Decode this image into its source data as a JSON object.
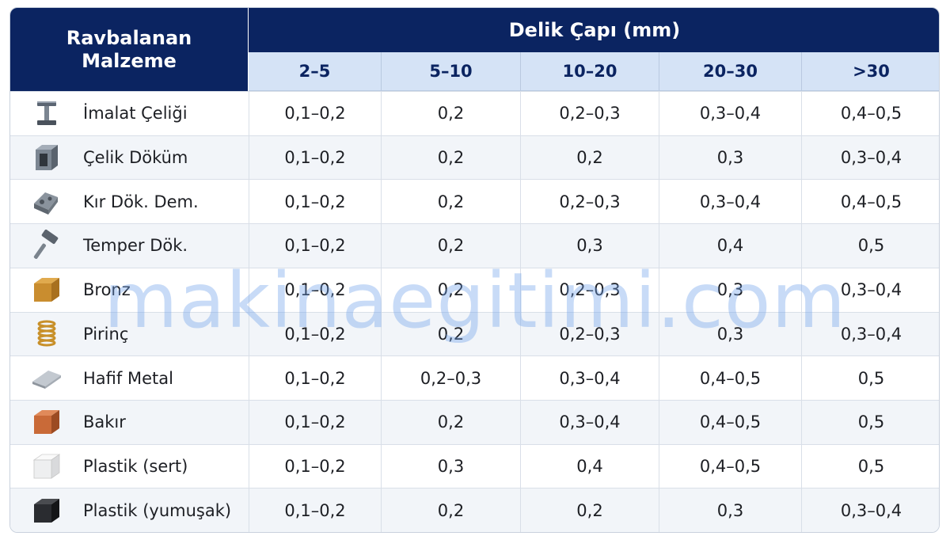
{
  "header": {
    "material_line1": "Ravbalanan",
    "material_line2": "Malzeme",
    "group": "Delik Çapı (mm)",
    "columns": [
      "2–5",
      "5–10",
      "10–20",
      "20–30",
      ">30"
    ]
  },
  "rows": [
    {
      "name": "İmalat Çeliği",
      "icon": "i-beam-icon",
      "values": [
        "0,1–0,2",
        "0,2",
        "0,2–0,3",
        "0,3–0,4",
        "0,4–0,5"
      ]
    },
    {
      "name": "Çelik Döküm",
      "icon": "steel-cube-icon",
      "values": [
        "0,1–0,2",
        "0,2",
        "0,2",
        "0,3",
        "0,3–0,4"
      ]
    },
    {
      "name": "Kır Dök. Dem.",
      "icon": "cast-iron-block-icon",
      "values": [
        "0,1–0,2",
        "0,2",
        "0,2–0,3",
        "0,3–0,4",
        "0,4–0,5"
      ]
    },
    {
      "name": "Temper Dök.",
      "icon": "hammer-icon",
      "values": [
        "0,1–0,2",
        "0,2",
        "0,3",
        "0,4",
        "0,5"
      ]
    },
    {
      "name": "Bronz",
      "icon": "bronze-cube-icon",
      "values": [
        "0,1–0,2",
        "0,2",
        "0,2–0,3",
        "0,3",
        "0,3–0,4"
      ]
    },
    {
      "name": "Pirinç",
      "icon": "brass-spring-icon",
      "values": [
        "0,1–0,2",
        "0,2",
        "0,2–0,3",
        "0,3",
        "0,3–0,4"
      ]
    },
    {
      "name": "Hafif Metal",
      "icon": "light-metal-plate-icon",
      "values": [
        "0,1–0,2",
        "0,2–0,3",
        "0,3–0,4",
        "0,4–0,5",
        "0,5"
      ]
    },
    {
      "name": "Bakır",
      "icon": "copper-cube-icon",
      "values": [
        "0,1–0,2",
        "0,2",
        "0,3–0,4",
        "0,4–0,5",
        "0,5"
      ]
    },
    {
      "name": "Plastik (sert)",
      "icon": "white-plastic-cube-icon",
      "values": [
        "0,1–0,2",
        "0,3",
        "0,4",
        "0,4–0,5",
        "0,5"
      ]
    },
    {
      "name": "Plastik (yumuşak)",
      "icon": "black-plastic-cube-icon",
      "values": [
        "0,1–0,2",
        "0,2",
        "0,2",
        "0,3",
        "0,3–0,4"
      ]
    }
  ],
  "watermark": "makinaegitimi.com",
  "colors": {
    "header_dark": "#0b2461",
    "header_light": "#d5e3f6",
    "row_alt": "#f2f5f9",
    "watermark": "#6ea0eb"
  }
}
